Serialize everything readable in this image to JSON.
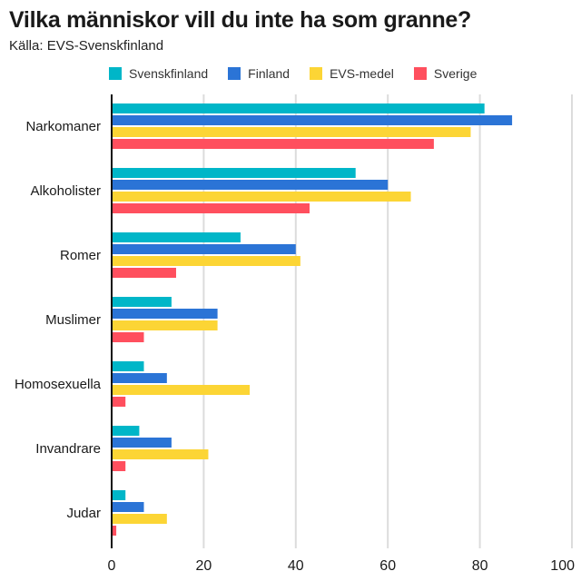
{
  "title": "Vilka människor vill du inte ha som granne?",
  "subtitle": "Källa: EVS-Svenskfinland",
  "chart_data": {
    "type": "bar",
    "orientation": "horizontal",
    "title": "Vilka människor vill du inte ha som granne?",
    "subtitle": "Källa: EVS-Svenskfinland",
    "categories": [
      "Narkomaner",
      "Alkoholister",
      "Romer",
      "Muslimer",
      "Homosexuella",
      "Invandrare",
      "Judar"
    ],
    "series": [
      {
        "name": "Svenskfinland",
        "color": "#00b6c8",
        "values": [
          81,
          53,
          28,
          13,
          7,
          6,
          3
        ]
      },
      {
        "name": "Finland",
        "color": "#2b74d6",
        "values": [
          87,
          60,
          40,
          23,
          12,
          13,
          7
        ]
      },
      {
        "name": "EVS-medel",
        "color": "#fcd535",
        "values": [
          78,
          65,
          41,
          23,
          30,
          21,
          12
        ]
      },
      {
        "name": "Sverige",
        "color": "#ff4f5e",
        "values": [
          70,
          43,
          14,
          7,
          3,
          3,
          1
        ]
      }
    ],
    "xlim": [
      0,
      100
    ],
    "xticks": [
      "0",
      "20",
      "40",
      "60",
      "80",
      "100"
    ],
    "xlabel": "",
    "ylabel": "",
    "grid": "vertical",
    "legend_position": "top"
  }
}
